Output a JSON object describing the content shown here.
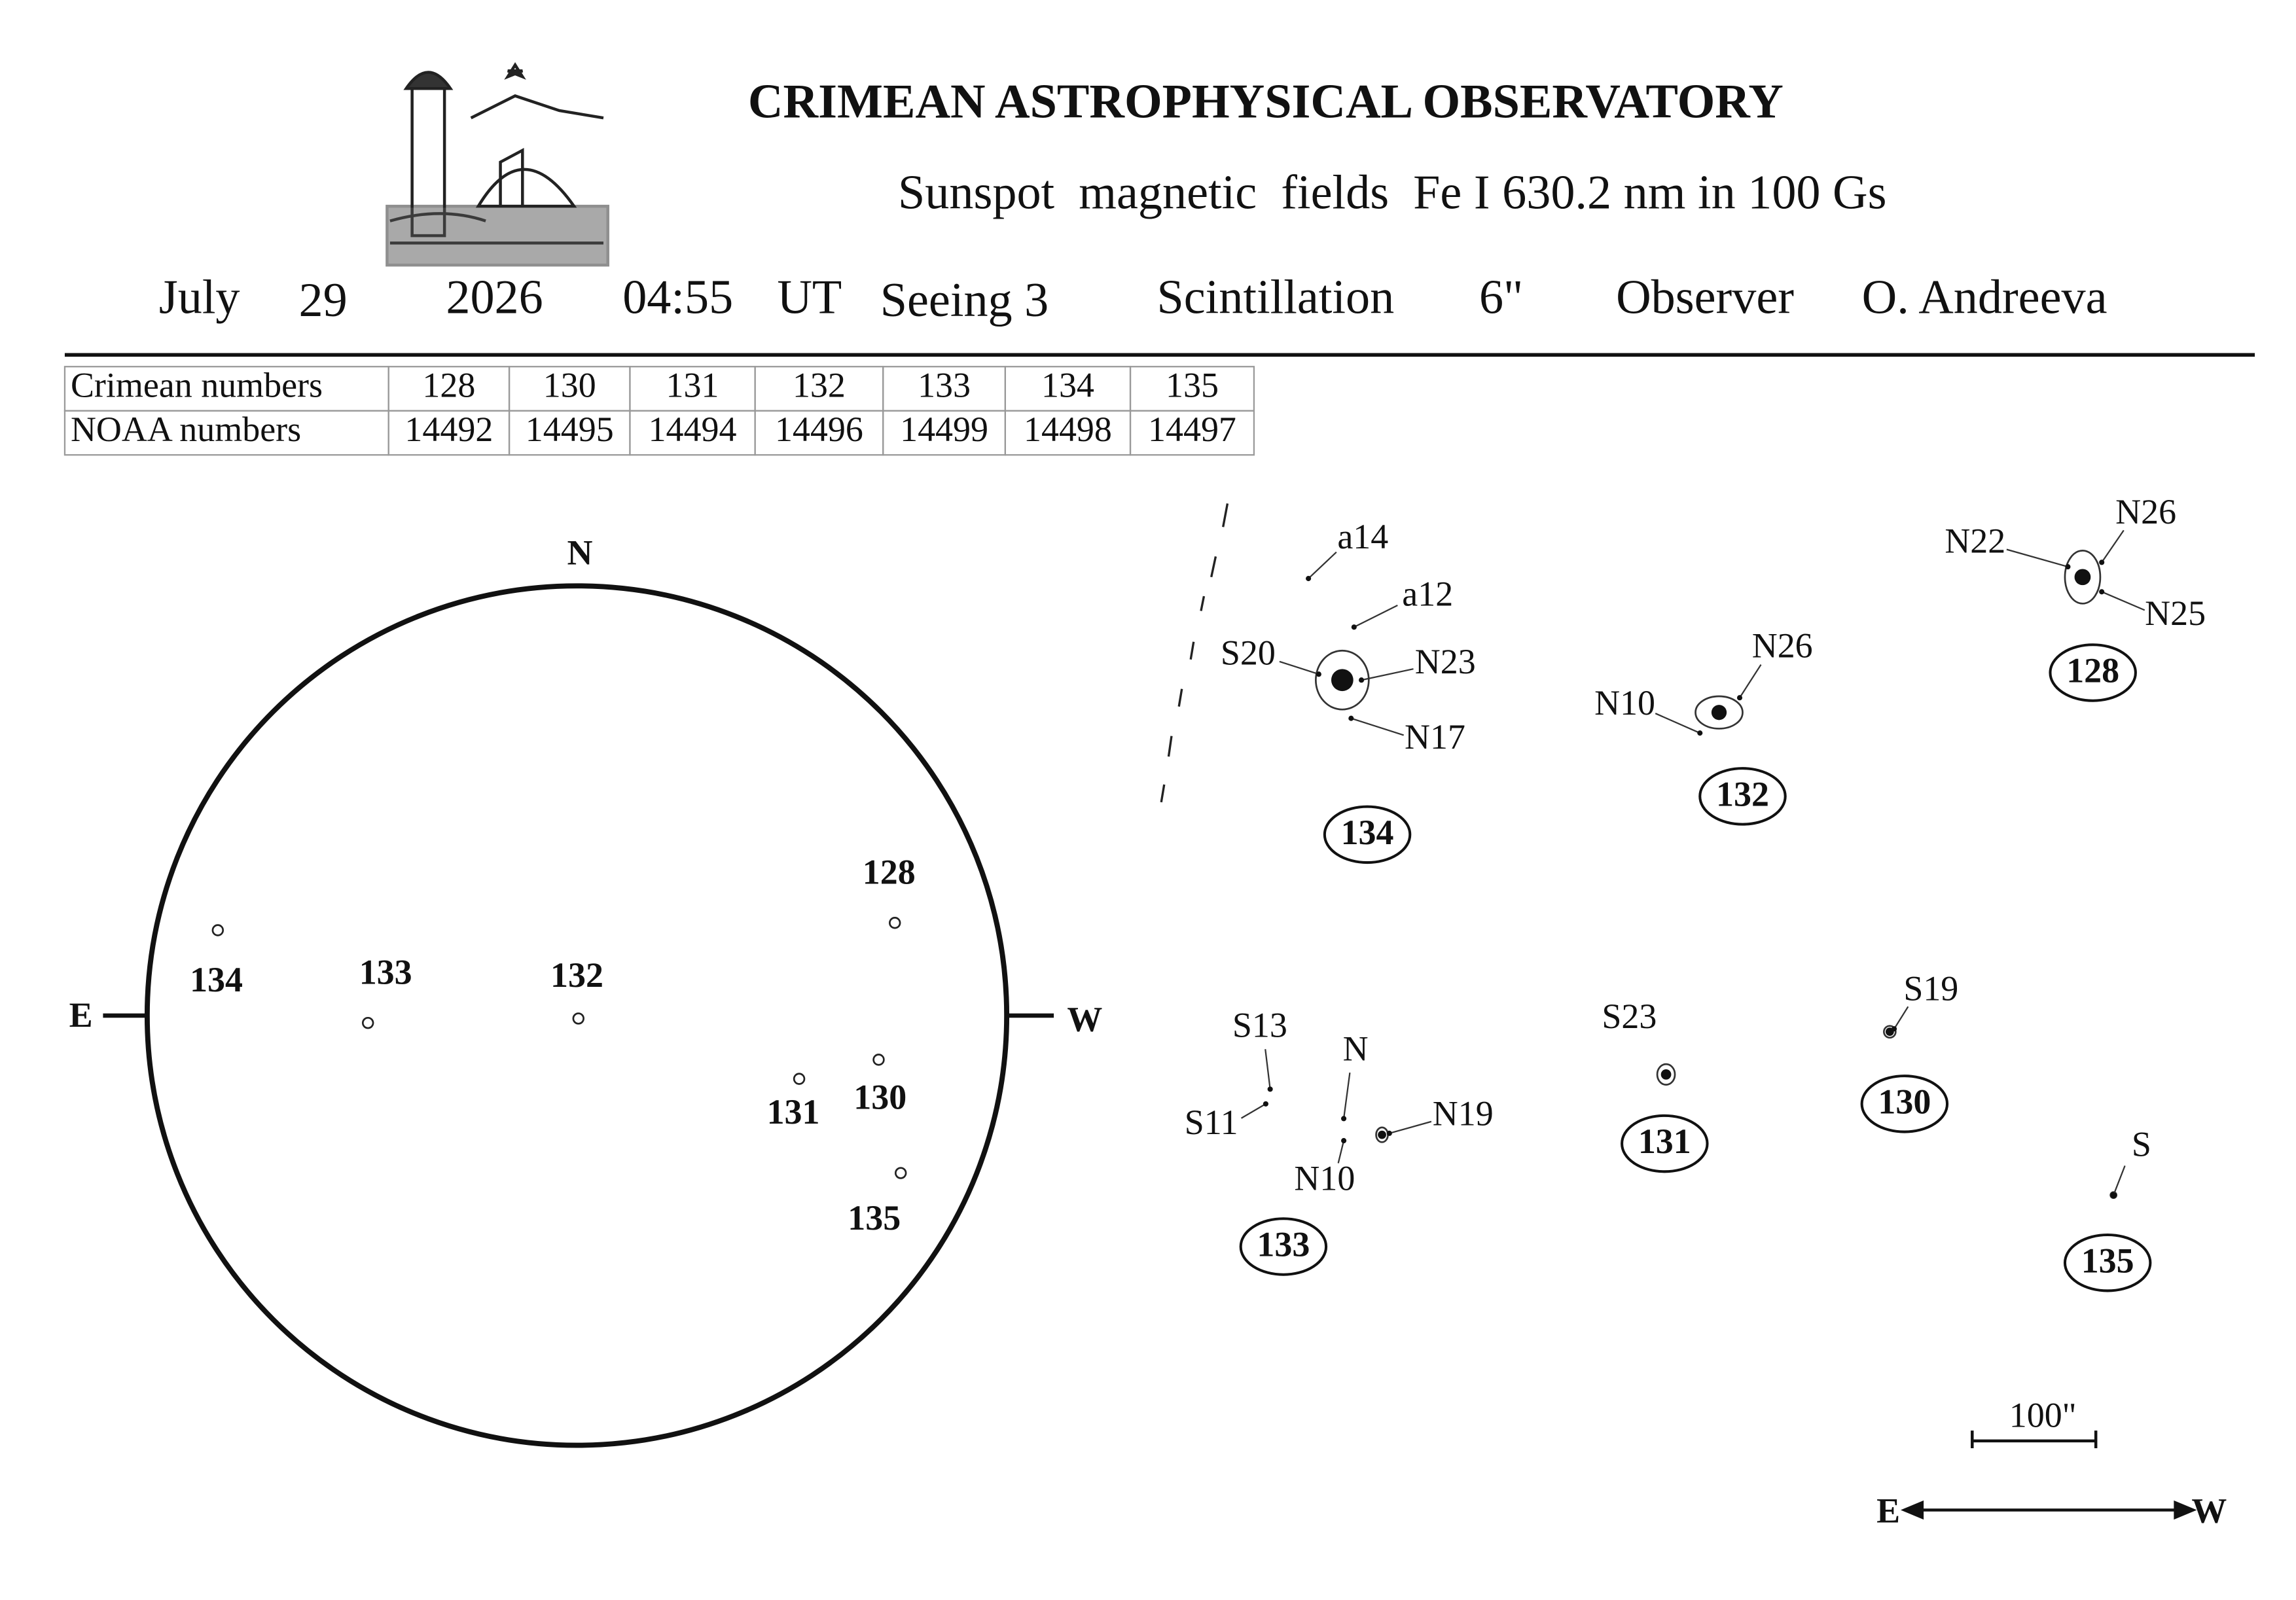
{
  "header": {
    "organization": "CRIMEAN ASTROPHYSICAL OBSERVATORY",
    "subtitle": "Sunspot  magnetic  fields  Fe I 630.2 nm in 100 Gs",
    "month": "July",
    "day": "29",
    "year": "2026",
    "time": "04:55",
    "time_unit": "UT",
    "seeing": "Seeing 3",
    "scintillation": "Scintillation",
    "scintillation_value": "6\"",
    "observer": "Observer",
    "observer_name": "O. Andreeva"
  },
  "table": {
    "rows": [
      [
        "Crimean numbers",
        "128",
        "130",
        "131",
        "132",
        "133",
        "134",
        "135"
      ],
      [
        "NOAA numbers",
        "14492",
        "14495",
        "14494",
        "14496",
        "14499",
        "14498",
        "14497"
      ]
    ]
  },
  "disk": {
    "north": "N",
    "east": "E",
    "west": "W",
    "groups": [
      "134",
      "133",
      "132",
      "128",
      "131",
      "130",
      "135"
    ]
  },
  "regions": [
    {
      "number": "134",
      "labels": [
        "a14",
        "a12",
        "S20",
        "N23",
        "N17"
      ]
    },
    {
      "number": "132",
      "labels": [
        "N26",
        "N10"
      ]
    },
    {
      "number": "128",
      "labels": [
        "N22",
        "N26",
        "N25"
      ]
    },
    {
      "number": "133",
      "labels": [
        "S13",
        "N",
        "S11",
        "N19",
        "N10"
      ]
    },
    {
      "number": "131",
      "labels": [
        "S23"
      ]
    },
    {
      "number": "130",
      "labels": [
        "S19"
      ]
    },
    {
      "number": "135",
      "labels": [
        "S"
      ]
    }
  ],
  "scale": {
    "label": "100\""
  },
  "orientation": {
    "east": "E",
    "west": "W"
  }
}
